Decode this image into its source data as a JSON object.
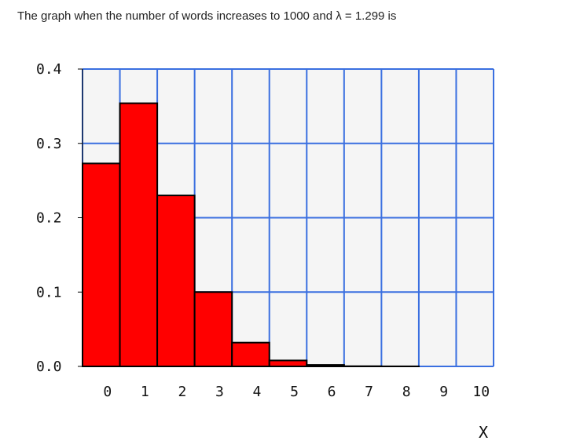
{
  "caption": "The graph when the number of words increases to 1000 and λ = 1.299 is",
  "chart_data": {
    "type": "bar",
    "title": "",
    "categories": [
      "0",
      "1",
      "2",
      "3",
      "4",
      "5",
      "6",
      "7",
      "8",
      "9",
      "10"
    ],
    "values": [
      0.273,
      0.354,
      0.23,
      0.1,
      0.032,
      0.008,
      0.002,
      0.0003,
      0.0001,
      0.0,
      0.0
    ],
    "xlabel": "X",
    "ylabel": "",
    "ylim": [
      0,
      0.4
    ],
    "yticks": [
      "0.0",
      "0.1",
      "0.2",
      "0.3",
      "0.4"
    ],
    "grid": true,
    "colors": {
      "bar_fill": "#ff0000",
      "bar_stroke": "#000000",
      "grid": "#3a6fe0",
      "plot_background": "#f5f5f5"
    }
  }
}
